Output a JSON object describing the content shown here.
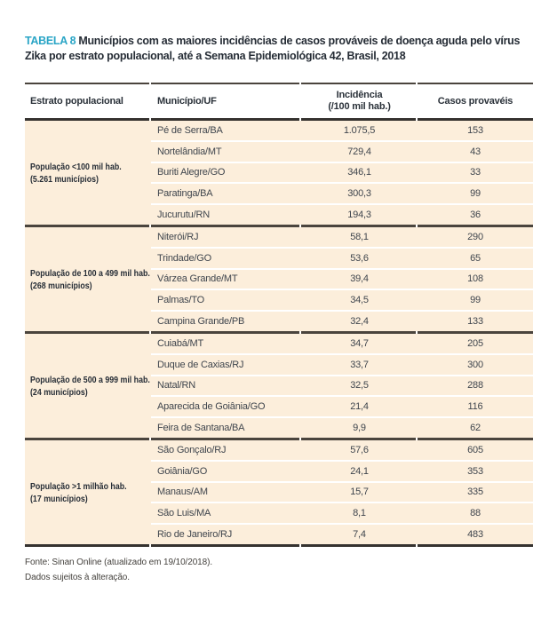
{
  "colors": {
    "accent_teal": "#2AA5C6",
    "row_bg": "#FCEEDB",
    "rule_dark": "#35322F",
    "rule_mid": "#4A443D",
    "text_heading": "#262D36",
    "text_body": "#3F454D"
  },
  "title": {
    "tag": "TABELA 8",
    "text": "Municípios com as maiores incidências de casos prováveis de doença aguda pelo vírus Zika por estrato populacional, até a Semana Epidemiológica 42, Brasil, 2018"
  },
  "table": {
    "columns": [
      {
        "label": "Estrato populacional"
      },
      {
        "label": "Município/UF"
      },
      {
        "label": "Incidência",
        "sublabel": "(/100 mil hab.)"
      },
      {
        "label": "Casos provavéis"
      }
    ],
    "groups": [
      {
        "stratum": "População <100 mil hab.",
        "count": "(5.261 municípios)",
        "rows": [
          {
            "municipio": "Pé de Serra/BA",
            "incidencia": "1.075,5",
            "casos": "153"
          },
          {
            "municipio": "Nortelândia/MT",
            "incidencia": "729,4",
            "casos": "43"
          },
          {
            "municipio": "Buriti Alegre/GO",
            "incidencia": "346,1",
            "casos": "33"
          },
          {
            "municipio": "Paratinga/BA",
            "incidencia": "300,3",
            "casos": "99"
          },
          {
            "municipio": "Jucurutu/RN",
            "incidencia": "194,3",
            "casos": "36"
          }
        ]
      },
      {
        "stratum": "População de 100 a 499 mil hab.",
        "count": "(268 municípios)",
        "rows": [
          {
            "municipio": "Niterói/RJ",
            "incidencia": "58,1",
            "casos": "290"
          },
          {
            "municipio": "Trindade/GO",
            "incidencia": "53,6",
            "casos": "65"
          },
          {
            "municipio": "Várzea Grande/MT",
            "incidencia": "39,4",
            "casos": "108"
          },
          {
            "municipio": "Palmas/TO",
            "incidencia": "34,5",
            "casos": "99"
          },
          {
            "municipio": "Campina Grande/PB",
            "incidencia": "32,4",
            "casos": "133"
          }
        ]
      },
      {
        "stratum": "População de 500 a 999 mil hab.",
        "count": "(24 municípios)",
        "rows": [
          {
            "municipio": "Cuiabá/MT",
            "incidencia": "34,7",
            "casos": "205"
          },
          {
            "municipio": "Duque de Caxias/RJ",
            "incidencia": "33,7",
            "casos": "300"
          },
          {
            "municipio": "Natal/RN",
            "incidencia": "32,5",
            "casos": "288"
          },
          {
            "municipio": "Aparecida de Goiânia/GO",
            "incidencia": "21,4",
            "casos": "116"
          },
          {
            "municipio": "Feira de Santana/BA",
            "incidencia": "9,9",
            "casos": "62"
          }
        ]
      },
      {
        "stratum": "População >1 milhão hab.",
        "count": "(17 municípios)",
        "rows": [
          {
            "municipio": "São Gonçalo/RJ",
            "incidencia": "57,6",
            "casos": "605"
          },
          {
            "municipio": "Goiânia/GO",
            "incidencia": "24,1",
            "casos": "353"
          },
          {
            "municipio": "Manaus/AM",
            "incidencia": "15,7",
            "casos": "335"
          },
          {
            "municipio": "São Luis/MA",
            "incidencia": "8,1",
            "casos": "88"
          },
          {
            "municipio": "Rio de Janeiro/RJ",
            "incidencia": "7,4",
            "casos": "483"
          }
        ]
      }
    ]
  },
  "footer": {
    "line1": "Fonte: Sinan Online (atualizado em 19/10/2018).",
    "line2": "Dados sujeitos à alteração."
  }
}
